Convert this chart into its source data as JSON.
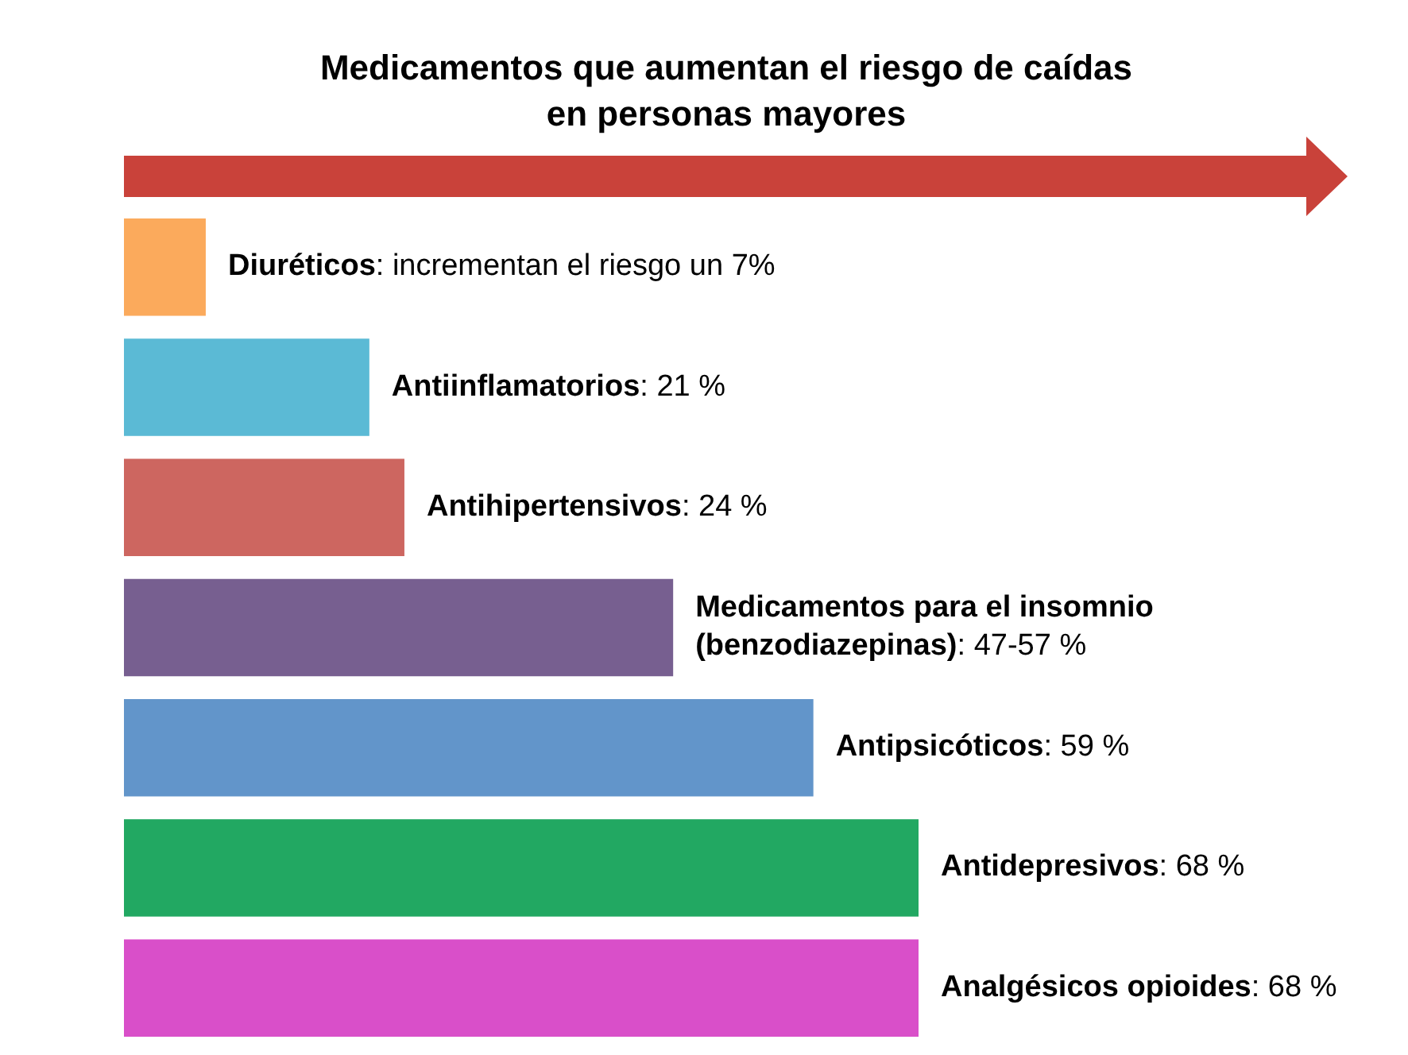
{
  "chart_data": {
    "type": "bar",
    "orientation": "horizontal",
    "title": "Medicamentos que aumentan el riesgo de caídas\nen personas mayores",
    "categories": [
      null,
      null,
      null,
      null,
      null,
      null,
      null
    ],
    "values": [
      7,
      21,
      24,
      47,
      59,
      68,
      68
    ],
    "colors": [
      "#fbaa5c",
      "#5bbad5",
      "#cd6660",
      "#775f90",
      "#6295ca",
      "#22a862",
      "#d94fc9"
    ],
    "value_labels": [
      "Diuréticos: incrementan el riesgo un 7%",
      "Antiinflamatorios: 21 %",
      "Antihipertensivos: 24 %",
      "Medicamentos para el insomnio (benzodiazepinas): 47-57 %",
      "Antipsicóticos: 59 %",
      "Antidepresivos: 68 %",
      "Analgésicos opioides: 68 %"
    ]
  }
}
